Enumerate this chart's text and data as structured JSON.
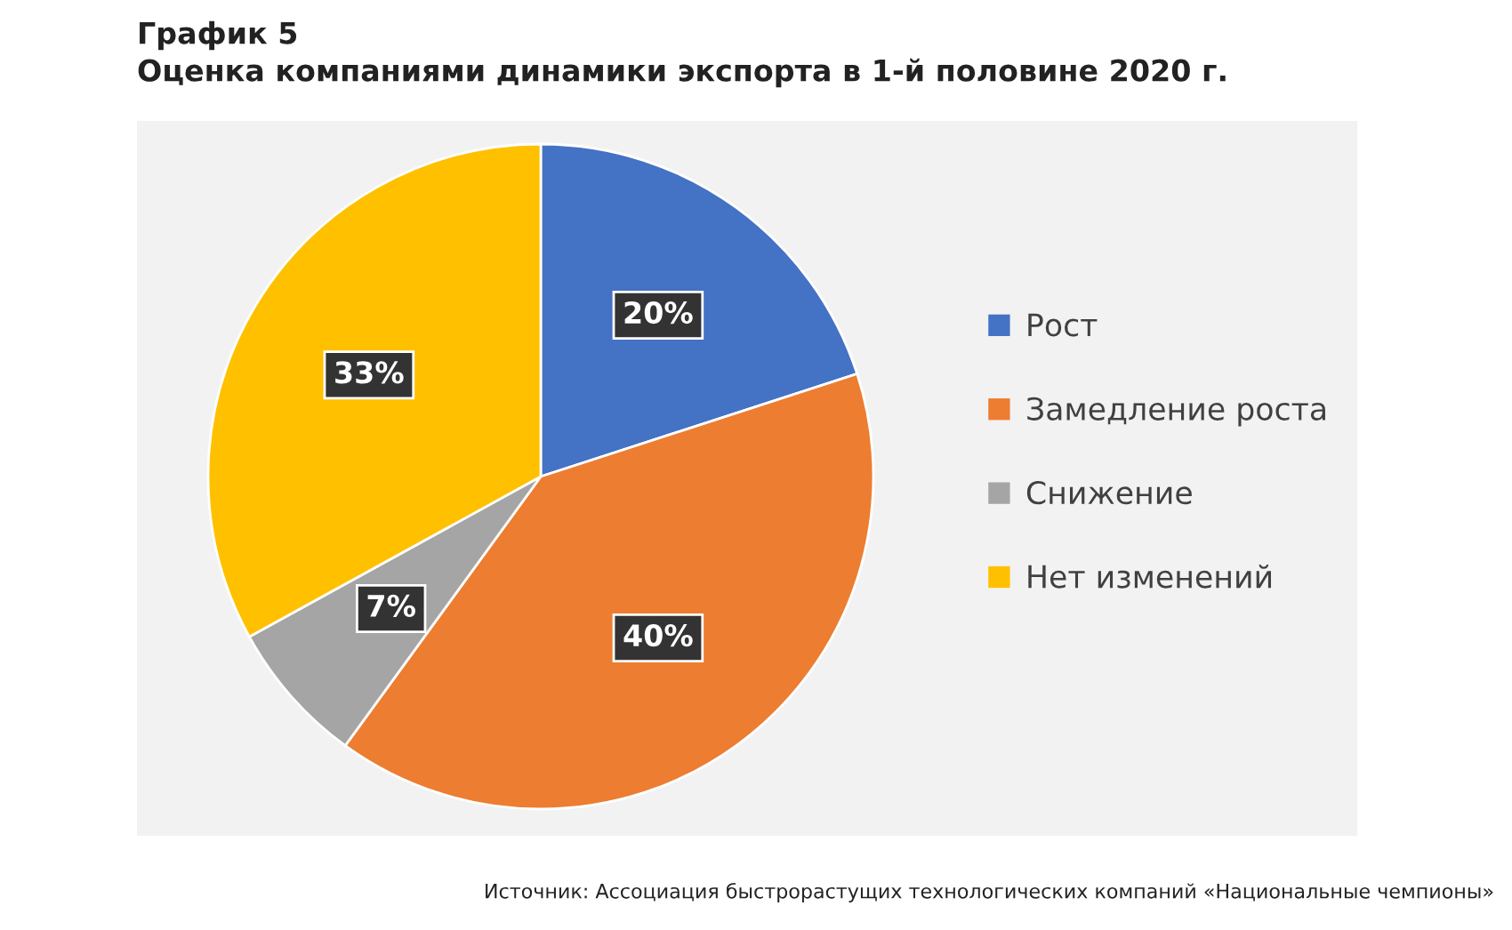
{
  "chart_data": {
    "type": "pie",
    "title": "График 5",
    "subtitle": "Оценка компаниями динамики экспорта в 1-й половине 2020 г.",
    "categories": [
      "Рост",
      "Замедление роста",
      "Снижение",
      "Нет изменений"
    ],
    "values": [
      20,
      40,
      7,
      33
    ],
    "value_labels": [
      "20%",
      "40%",
      "7%",
      "33%"
    ],
    "colors": [
      "#4472c4",
      "#ed7d31",
      "#a5a5a5",
      "#ffc000"
    ],
    "legend": "right",
    "annotations": [
      "Источник: Ассоциация быстрорастущих технологических компаний «Национальные чемпионы»"
    ]
  }
}
